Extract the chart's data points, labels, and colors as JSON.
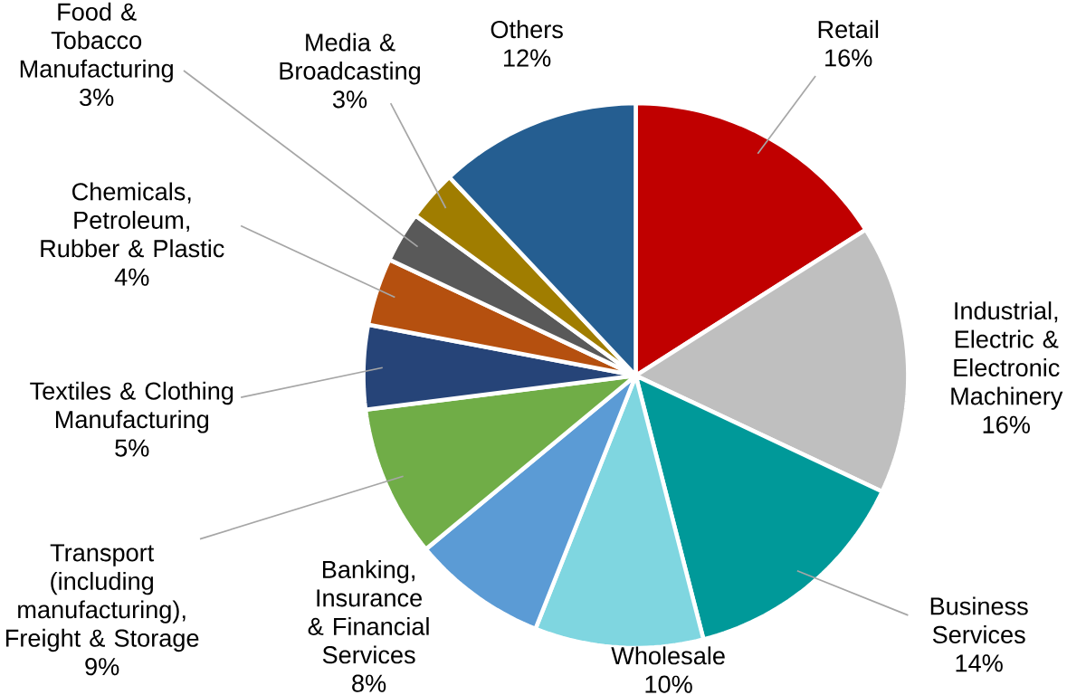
{
  "chart_data": {
    "type": "pie",
    "categories": [
      "Retail",
      "Industrial, Electric & Electronic Machinery",
      "Business Services",
      "Wholesale",
      "Banking, Insurance & Financial Services",
      "Transport (including manufacturing), Freight & Storage",
      "Textiles & Clothing Manufacturing",
      "Chemicals, Petroleum, Rubber & Plastic",
      "Food & Tobacco Manufacturing",
      "Media & Broadcasting",
      "Others"
    ],
    "values": [
      16,
      16,
      14,
      10,
      8,
      9,
      5,
      4,
      3,
      3,
      12
    ],
    "colors": [
      "#c00000",
      "#bfbfbf",
      "#009999",
      "#7fd6e0",
      "#5b9bd5",
      "#70ad47",
      "#264478",
      "#b5500f",
      "#595959",
      "#a07d00",
      "#255e91"
    ],
    "value_labels": [
      "16%",
      "16%",
      "14%",
      "10%",
      "8%",
      "9%",
      "5%",
      "4%",
      "3%",
      "3%",
      "12%"
    ]
  }
}
